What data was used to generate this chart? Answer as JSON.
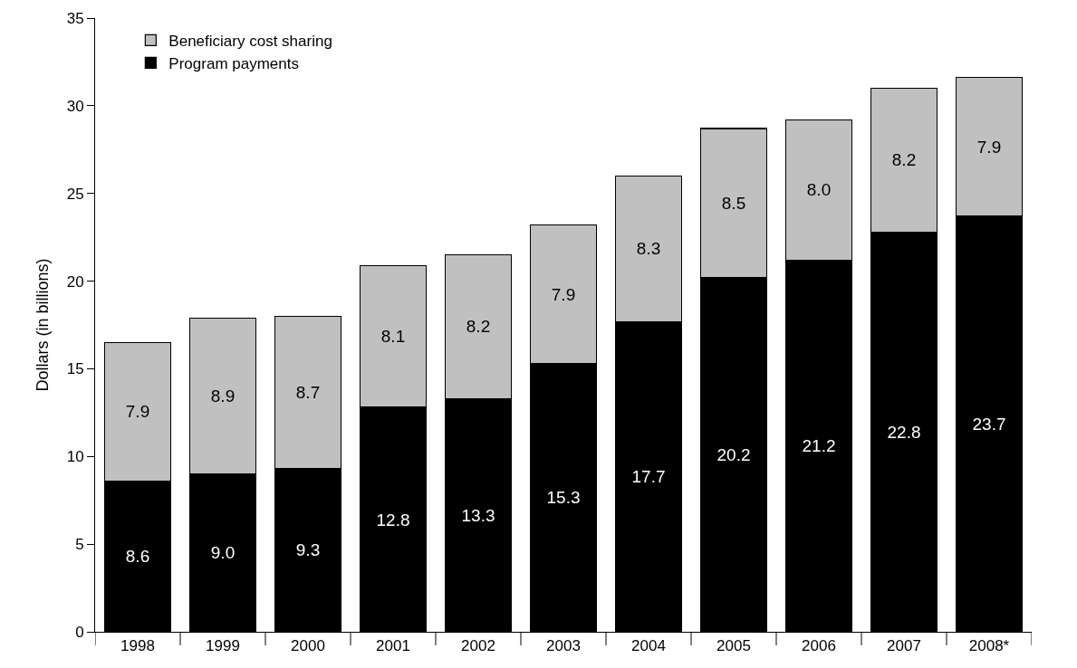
{
  "chart_data": {
    "type": "bar",
    "stacked": true,
    "ylabel": "Dollars (in billions)",
    "categories": [
      "1998",
      "1999",
      "2000",
      "2001",
      "2002",
      "2003",
      "2004",
      "2005",
      "2006",
      "2007",
      "2008*"
    ],
    "series": [
      {
        "name": "Program payments",
        "color": "#000000",
        "values": [
          8.6,
          9.0,
          9.3,
          12.8,
          13.3,
          15.3,
          17.7,
          20.2,
          21.2,
          22.8,
          23.7
        ],
        "value_labels": [
          "8.6",
          "9.0",
          "9.3",
          "12.8",
          "13.3",
          "15.3",
          "17.7",
          "20.2",
          "21.2",
          "22.8",
          "23.7"
        ]
      },
      {
        "name": "Beneficiary cost sharing",
        "color": "#c0c0c0",
        "values": [
          7.9,
          8.9,
          8.7,
          8.1,
          8.2,
          7.9,
          8.3,
          8.5,
          8.0,
          8.2,
          7.9
        ],
        "value_labels": [
          "7.9",
          "8.9",
          "8.7",
          "8.1",
          "8.2",
          "7.9",
          "8.3",
          "8.5",
          "8.0",
          "8.2",
          "7.9"
        ]
      }
    ],
    "ylim": [
      0,
      35
    ],
    "yticks": [
      0,
      5,
      10,
      15,
      20,
      25,
      30,
      35
    ],
    "legend": "top left"
  }
}
